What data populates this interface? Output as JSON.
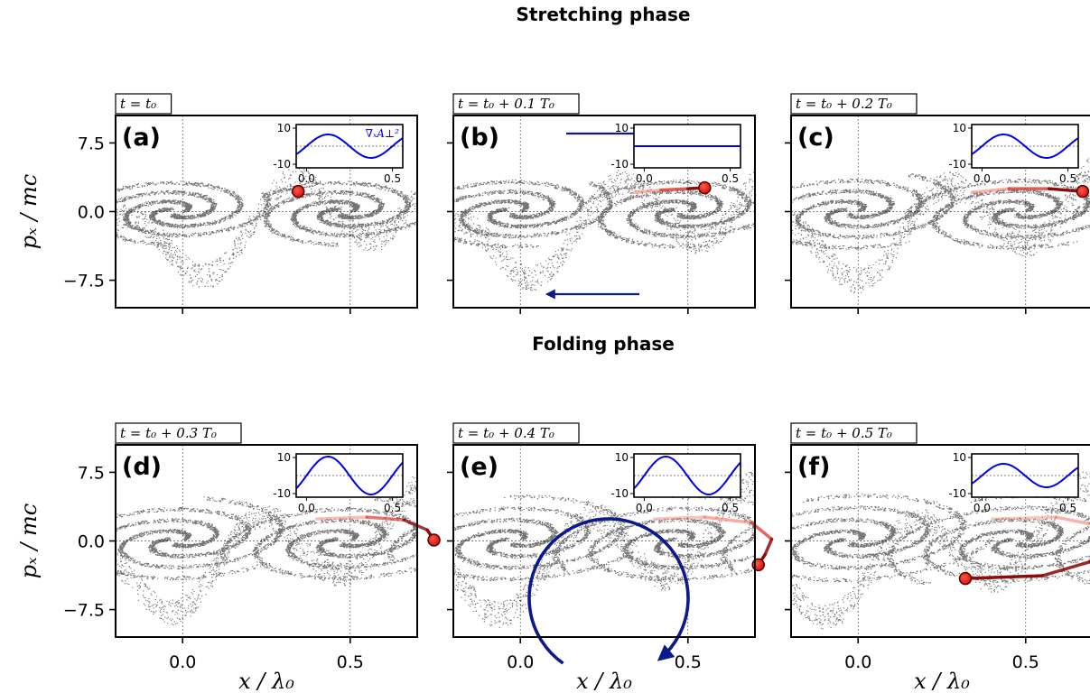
{
  "headings": {
    "stretching": "Stretching phase",
    "folding": "Folding phase"
  },
  "colors": {
    "field": "#0000ee",
    "arrow": "#0a1a8a",
    "particle": "#e8221a",
    "particle_edge": "#5a0000",
    "dots": "#000000"
  },
  "chart_data": {
    "type": "scatter",
    "xlabel": "x / λ₀",
    "ylabel": "pₓ / mc",
    "xlim": [
      -0.2,
      0.7
    ],
    "ylim": [
      -10.5,
      10.5
    ],
    "xticks": [
      0.0,
      0.5
    ],
    "xtick_labels": [
      "0.0",
      "0.5"
    ],
    "yticks": [
      7.5,
      0.0,
      -7.5
    ],
    "ytick_labels": [
      "7.5",
      "0.0",
      "−7.5"
    ],
    "grid_x": [
      0.0,
      0.5
    ],
    "grid_y": [
      0.0
    ],
    "inset": {
      "label": "∇ₓA⊥²",
      "xlim": [
        -0.06,
        0.56
      ],
      "ylim": [
        -12,
        12
      ],
      "xticks": [
        0.0,
        0.5
      ],
      "xtick_labels": [
        "0.0",
        "0.5"
      ],
      "yticks": [
        10,
        -10
      ],
      "ytick_labels": [
        "10",
        "-10"
      ]
    },
    "panels": [
      {
        "id": "a",
        "label": "(a)",
        "time": "t = t₀",
        "phase": 0.0,
        "amplitude": 6.5,
        "inset_label": true,
        "marker": [
          0.345,
          2.2
        ],
        "trajectory": [],
        "arrow": "none"
      },
      {
        "id": "b",
        "label": "(b)",
        "time": "t = t₀ + 0.1 T₀",
        "phase": 1.0,
        "amplitude": 0.0,
        "inset_label": false,
        "marker": [
          0.55,
          2.6
        ],
        "trajectory": [
          [
            0.34,
            2.1
          ],
          [
            0.42,
            2.35
          ],
          [
            0.5,
            2.5
          ],
          [
            0.55,
            2.6
          ]
        ],
        "arrow": "shear"
      },
      {
        "id": "c",
        "label": "(c)",
        "time": "t = t₀ + 0.2 T₀",
        "phase": 2.0,
        "amplitude": 6.5,
        "inset_label": false,
        "marker": [
          0.67,
          2.2
        ],
        "trajectory": [
          [
            0.34,
            2.1
          ],
          [
            0.45,
            2.5
          ],
          [
            0.57,
            2.5
          ],
          [
            0.67,
            2.2
          ]
        ],
        "arrow": "none"
      },
      {
        "id": "d",
        "label": "(d)",
        "time": "t = t₀ + 0.3 T₀",
        "phase": 3.0,
        "amplitude": 10.5,
        "inset_label": false,
        "marker": [
          0.75,
          0.1
        ],
        "trajectory": [
          [
            0.4,
            2.4
          ],
          [
            0.55,
            2.6
          ],
          [
            0.66,
            2.3
          ],
          [
            0.73,
            1.2
          ],
          [
            0.75,
            0.1
          ]
        ],
        "arrow": "none"
      },
      {
        "id": "e",
        "label": "(e)",
        "time": "t = t₀ + 0.4 T₀",
        "phase": 4.0,
        "amplitude": 10.5,
        "inset_label": false,
        "marker": [
          0.71,
          -2.6
        ],
        "trajectory": [
          [
            0.4,
            2.4
          ],
          [
            0.55,
            2.6
          ],
          [
            0.69,
            2.0
          ],
          [
            0.75,
            0.2
          ],
          [
            0.73,
            -1.5
          ],
          [
            0.71,
            -2.6
          ]
        ],
        "arrow": "rotation"
      },
      {
        "id": "f",
        "label": "(f)",
        "time": "t = t₀ + 0.5 T₀",
        "phase": 5.0,
        "amplitude": 6.5,
        "inset_label": false,
        "marker": [
          0.32,
          -4.1
        ],
        "trajectory": [
          [
            0.4,
            2.4
          ],
          [
            0.59,
            2.6
          ],
          [
            0.7,
            1.8
          ],
          [
            0.73,
            0.0
          ],
          [
            0.69,
            -2.3
          ],
          [
            0.55,
            -3.8
          ],
          [
            0.32,
            -4.1
          ]
        ],
        "arrow": "none"
      }
    ]
  }
}
